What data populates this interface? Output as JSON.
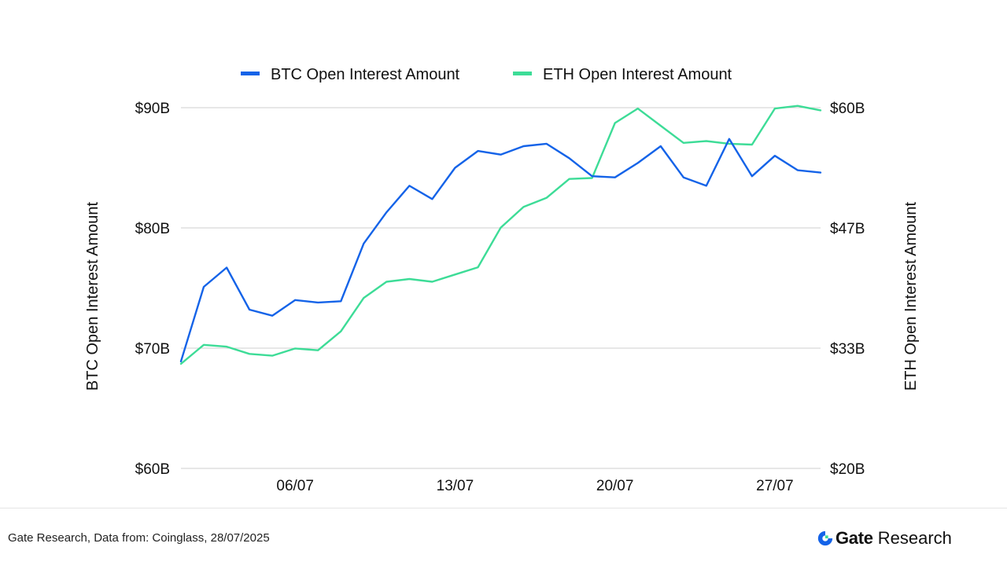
{
  "chart_data": {
    "type": "line",
    "legend": {
      "placement": "top-center"
    },
    "grid": true,
    "x": [
      "01/07",
      "02/07",
      "03/07",
      "04/07",
      "05/07",
      "06/07",
      "07/07",
      "08/07",
      "09/07",
      "10/07",
      "11/07",
      "12/07",
      "13/07",
      "14/07",
      "15/07",
      "16/07",
      "17/07",
      "18/07",
      "19/07",
      "20/07",
      "21/07",
      "22/07",
      "23/07",
      "24/07",
      "25/07",
      "26/07",
      "27/07",
      "28/07",
      "29/07"
    ],
    "xticks": [
      "06/07",
      "13/07",
      "20/07",
      "27/07"
    ],
    "series": [
      {
        "name": "BTC Open Interest Amount",
        "axis": "left",
        "color": "#1463e8",
        "values": [
          68.9,
          75.1,
          76.7,
          73.2,
          72.7,
          74.0,
          73.8,
          73.9,
          78.7,
          81.3,
          83.5,
          82.4,
          85.0,
          86.4,
          86.1,
          86.8,
          87.0,
          85.8,
          84.3,
          84.2,
          85.4,
          86.8,
          84.2,
          83.5,
          87.4,
          84.3,
          86.0,
          84.8,
          84.6
        ]
      },
      {
        "name": "ETH Open Interest Amount",
        "axis": "right",
        "color": "#3ddc97",
        "values": [
          31.6,
          33.7,
          33.5,
          32.7,
          32.5,
          33.3,
          33.1,
          35.2,
          38.9,
          40.7,
          41.0,
          40.7,
          41.5,
          42.3,
          46.7,
          49.0,
          50.0,
          52.1,
          52.2,
          58.3,
          59.9,
          58.0,
          56.1,
          56.3,
          56.0,
          55.9,
          59.9,
          60.2,
          59.7
        ]
      }
    ],
    "y_left": {
      "label": "BTC Open Interest Amount",
      "range": [
        60,
        90
      ],
      "ticks": [
        60,
        70,
        80,
        90
      ],
      "tick_labels": [
        "$60B",
        "$70B",
        "$80B",
        "$90B"
      ]
    },
    "y_right": {
      "label": "ETH Open Interest Amount",
      "range": [
        20,
        60
      ],
      "ticks": [
        20,
        33.33,
        46.67,
        60
      ],
      "tick_labels": [
        "$20B",
        "$33B",
        "$47B",
        "$60B"
      ]
    }
  },
  "footer": {
    "source": "Gate Research, Data from: Coinglass, 28/07/2025",
    "brand_name": "Gate",
    "brand_sub": "Research",
    "brand_color": "#1463e8"
  }
}
